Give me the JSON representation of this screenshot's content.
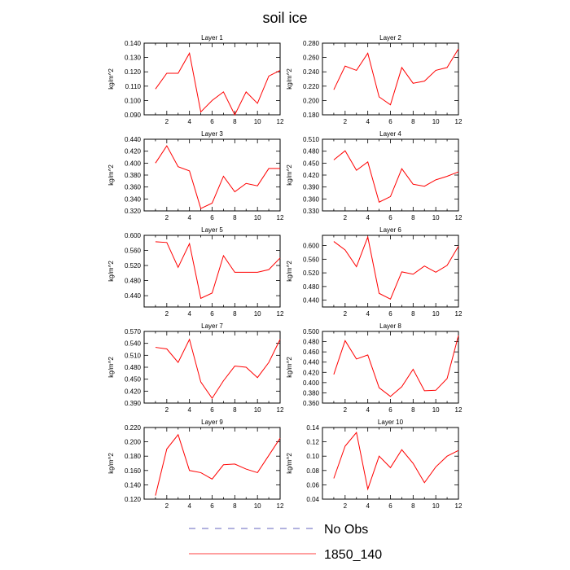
{
  "title": "soil ice",
  "legend": [
    {
      "label": "No Obs",
      "color": "#3333aa",
      "dash": "8,8"
    },
    {
      "label": "1850_140",
      "color": "#ff0000",
      "dash": ""
    }
  ],
  "chart_data": [
    {
      "type": "line",
      "title": "Layer 1",
      "ylabel": "kg/m^2",
      "x": [
        1,
        2,
        3,
        4,
        5,
        6,
        7,
        8,
        9,
        10,
        11,
        12
      ],
      "ylim": [
        0.09,
        0.14
      ],
      "yticks": [
        "0.090",
        "0.100",
        "0.110",
        "0.120",
        "0.130",
        "0.140"
      ],
      "xticks": [
        2,
        4,
        6,
        8,
        10,
        12
      ],
      "series": [
        {
          "values": [
            0.108,
            0.119,
            0.119,
            0.133,
            0.092,
            0.1,
            0.106,
            0.09,
            0.106,
            0.098,
            0.117,
            0.121
          ],
          "color": "#ff0000"
        }
      ]
    },
    {
      "type": "line",
      "title": "Layer 2",
      "ylabel": "kg/m^2",
      "x": [
        1,
        2,
        3,
        4,
        5,
        6,
        7,
        8,
        9,
        10,
        11,
        12
      ],
      "ylim": [
        0.18,
        0.28
      ],
      "yticks": [
        "0.180",
        "0.200",
        "0.220",
        "0.240",
        "0.260",
        "0.280"
      ],
      "xticks": [
        2,
        4,
        6,
        8,
        10,
        12
      ],
      "series": [
        {
          "values": [
            0.215,
            0.248,
            0.242,
            0.266,
            0.205,
            0.194,
            0.246,
            0.224,
            0.227,
            0.242,
            0.246,
            0.272
          ],
          "color": "#ff0000"
        }
      ]
    },
    {
      "type": "line",
      "title": "Layer 3",
      "ylabel": "kg/m^2",
      "x": [
        1,
        2,
        3,
        4,
        5,
        6,
        7,
        8,
        9,
        10,
        11,
        12
      ],
      "ylim": [
        0.32,
        0.44
      ],
      "yticks": [
        "0.320",
        "0.340",
        "0.360",
        "0.380",
        "0.400",
        "0.420",
        "0.440"
      ],
      "xticks": [
        2,
        4,
        6,
        8,
        10,
        12
      ],
      "series": [
        {
          "values": [
            0.4,
            0.429,
            0.394,
            0.387,
            0.324,
            0.333,
            0.378,
            0.352,
            0.366,
            0.362,
            0.391,
            0.391
          ],
          "color": "#ff0000"
        }
      ]
    },
    {
      "type": "line",
      "title": "Layer 4",
      "ylabel": "kg/m^2",
      "x": [
        1,
        2,
        3,
        4,
        5,
        6,
        7,
        8,
        9,
        10,
        11,
        12
      ],
      "ylim": [
        0.33,
        0.51
      ],
      "yticks": [
        "0.330",
        "0.360",
        "0.390",
        "0.420",
        "0.450",
        "0.480",
        "0.510"
      ],
      "xticks": [
        2,
        4,
        6,
        8,
        10,
        12
      ],
      "series": [
        {
          "values": [
            0.458,
            0.481,
            0.432,
            0.453,
            0.352,
            0.366,
            0.436,
            0.397,
            0.392,
            0.408,
            0.417,
            0.428
          ],
          "color": "#ff0000"
        }
      ]
    },
    {
      "type": "line",
      "title": "Layer 5",
      "ylabel": "kg/m^2",
      "x": [
        1,
        2,
        3,
        4,
        5,
        6,
        7,
        8,
        9,
        10,
        11,
        12
      ],
      "ylim": [
        0.41,
        0.6
      ],
      "yticks": [
        "0.440",
        "0.480",
        "0.520",
        "0.560",
        "0.600"
      ],
      "xticks": [
        2,
        4,
        6,
        8,
        10,
        12
      ],
      "series": [
        {
          "values": [
            0.583,
            0.581,
            0.515,
            0.578,
            0.433,
            0.447,
            0.546,
            0.502,
            0.502,
            0.502,
            0.509,
            0.54
          ],
          "color": "#ff0000"
        }
      ]
    },
    {
      "type": "line",
      "title": "Layer 6",
      "ylabel": "kg/m^2",
      "x": [
        1,
        2,
        3,
        4,
        5,
        6,
        7,
        8,
        9,
        10,
        11,
        12
      ],
      "ylim": [
        0.42,
        0.63
      ],
      "yticks": [
        "0.440",
        "0.480",
        "0.520",
        "0.560",
        "0.600"
      ],
      "xticks": [
        2,
        4,
        6,
        8,
        10,
        12
      ],
      "series": [
        {
          "values": [
            0.612,
            0.587,
            0.538,
            0.625,
            0.46,
            0.443,
            0.523,
            0.516,
            0.54,
            0.522,
            0.542,
            0.598
          ],
          "color": "#ff0000"
        }
      ]
    },
    {
      "type": "line",
      "title": "Layer 7",
      "ylabel": "kg/m^2",
      "x": [
        1,
        2,
        3,
        4,
        5,
        6,
        7,
        8,
        9,
        10,
        11,
        12
      ],
      "ylim": [
        0.39,
        0.57
      ],
      "yticks": [
        "0.390",
        "0.420",
        "0.450",
        "0.480",
        "0.510",
        "0.540",
        "0.570"
      ],
      "xticks": [
        2,
        4,
        6,
        8,
        10,
        12
      ],
      "series": [
        {
          "values": [
            0.53,
            0.526,
            0.492,
            0.55,
            0.443,
            0.402,
            0.446,
            0.483,
            0.48,
            0.454,
            0.492,
            0.55
          ],
          "color": "#ff0000"
        }
      ]
    },
    {
      "type": "line",
      "title": "Layer 8",
      "ylabel": "kg/m^2",
      "x": [
        1,
        2,
        3,
        4,
        5,
        6,
        7,
        8,
        9,
        10,
        11,
        12
      ],
      "ylim": [
        0.36,
        0.5
      ],
      "yticks": [
        "0.360",
        "0.380",
        "0.400",
        "0.420",
        "0.440",
        "0.460",
        "0.480",
        "0.500"
      ],
      "xticks": [
        2,
        4,
        6,
        8,
        10,
        12
      ],
      "series": [
        {
          "values": [
            0.416,
            0.482,
            0.446,
            0.454,
            0.39,
            0.373,
            0.392,
            0.426,
            0.384,
            0.385,
            0.408,
            0.492
          ],
          "color": "#ff0000"
        }
      ]
    },
    {
      "type": "line",
      "title": "Layer 9",
      "ylabel": "kg/m^2",
      "x": [
        1,
        2,
        3,
        4,
        5,
        6,
        7,
        8,
        9,
        10,
        11,
        12
      ],
      "ylim": [
        0.12,
        0.22
      ],
      "yticks": [
        "0.120",
        "0.140",
        "0.160",
        "0.180",
        "0.200",
        "0.220"
      ],
      "xticks": [
        2,
        4,
        6,
        8,
        10,
        12
      ],
      "series": [
        {
          "values": [
            0.125,
            0.19,
            0.21,
            0.16,
            0.157,
            0.148,
            0.168,
            0.169,
            0.162,
            0.157,
            0.181,
            0.205
          ],
          "color": "#ff0000"
        }
      ]
    },
    {
      "type": "line",
      "title": "Layer 10",
      "ylabel": "kg/m^2",
      "x": [
        1,
        2,
        3,
        4,
        5,
        6,
        7,
        8,
        9,
        10,
        11,
        12
      ],
      "ylim": [
        0.04,
        0.14
      ],
      "yticks": [
        "0.04",
        "0.06",
        "0.08",
        "0.10",
        "0.12",
        "0.14"
      ],
      "xticks": [
        2,
        4,
        6,
        8,
        10,
        12
      ],
      "series": [
        {
          "values": [
            0.069,
            0.114,
            0.133,
            0.054,
            0.1,
            0.084,
            0.109,
            0.09,
            0.063,
            0.085,
            0.1,
            0.108
          ],
          "color": "#ff0000"
        }
      ]
    }
  ]
}
